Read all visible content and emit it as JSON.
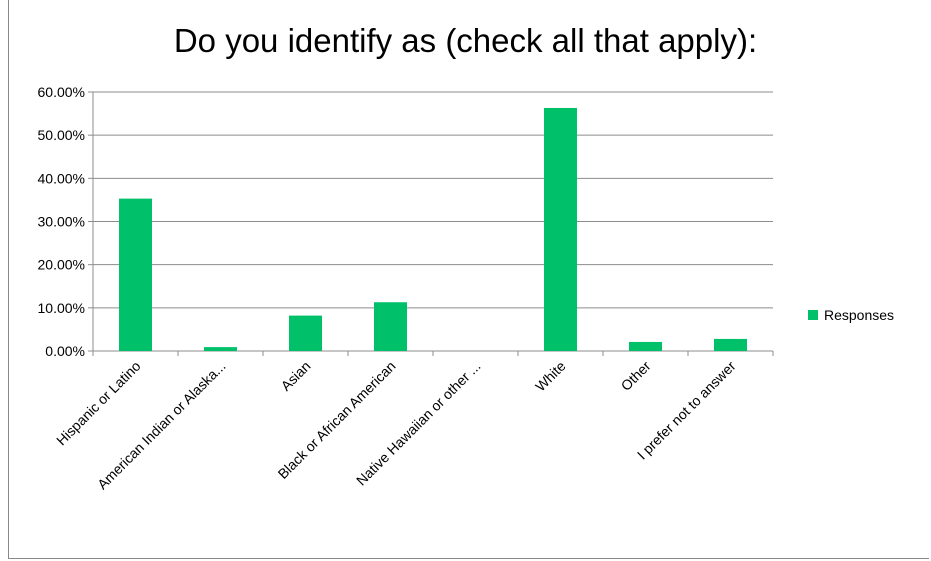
{
  "chart_data": {
    "type": "bar",
    "title": "Do you identify as (check all that apply):",
    "categories": [
      "Hispanic or Latino",
      "American Indian or Alaska...",
      "Asian",
      "Black or African American",
      "Native Hawaiian or other ...",
      "White",
      "Other",
      "I prefer not to answer"
    ],
    "series": [
      {
        "name": "Responses",
        "values": [
          35.3,
          0.9,
          8.2,
          11.3,
          0.0,
          56.3,
          2.1,
          2.8
        ],
        "color": "#00c06a"
      }
    ],
    "ylim": [
      0,
      60
    ],
    "yticks": [
      "0.00%",
      "10.00%",
      "20.00%",
      "30.00%",
      "40.00%",
      "50.00%",
      "60.00%"
    ],
    "ytick_values": [
      0,
      10,
      20,
      30,
      40,
      50,
      60
    ],
    "grid": true,
    "legend_position": "right"
  }
}
